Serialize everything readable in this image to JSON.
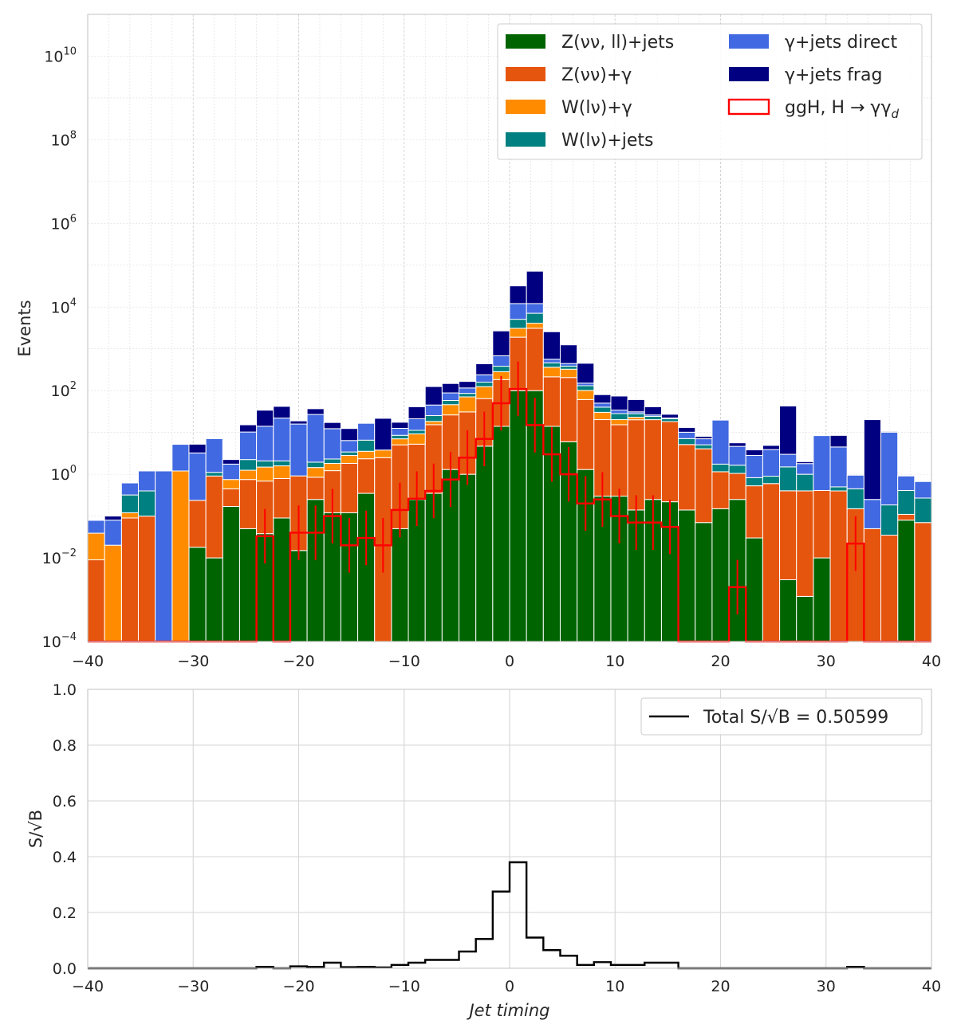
{
  "chart_data": [
    {
      "type": "bar",
      "stacked": true,
      "yscale": "log",
      "ylabel": "Events",
      "xlim": [
        -40,
        40
      ],
      "ylim": [
        0.0001,
        100000000000
      ],
      "bin_edges": [
        -40,
        -38.4,
        -36.8,
        -35.2,
        -33.6,
        -32,
        -30.4,
        -28.8,
        -27.2,
        -25.6,
        -24,
        -22.4,
        -20.8,
        -19.2,
        -17.6,
        -16,
        -14.4,
        -12.8,
        -11.2,
        -9.6,
        -8,
        -6.4,
        -4.8,
        -3.2,
        -1.6,
        0,
        1.6,
        3.2,
        4.8,
        6.4,
        8,
        9.6,
        11.2,
        12.8,
        14.4,
        16,
        17.6,
        19.2,
        20.8,
        22.4,
        24,
        25.6,
        27.2,
        28.8,
        30.4,
        32,
        33.6,
        35.2,
        36.8,
        38.4,
        40
      ],
      "x_ticks": [
        "−40",
        "−30",
        "−20",
        "−10",
        "0",
        "10",
        "20",
        "30",
        "40"
      ],
      "x_tick_values": [
        -40,
        -30,
        -20,
        -10,
        0,
        10,
        20,
        30,
        40
      ],
      "y_ticks": [
        {
          "base": "10",
          "exp": "−4",
          "value": 0.0001
        },
        {
          "base": "10",
          "exp": "−2",
          "value": 0.01
        },
        {
          "base": "10",
          "exp": "0",
          "value": 1
        },
        {
          "base": "10",
          "exp": "2",
          "value": 100
        },
        {
          "base": "10",
          "exp": "4",
          "value": 10000
        },
        {
          "base": "10",
          "exp": "6",
          "value": 1000000
        },
        {
          "base": "10",
          "exp": "8",
          "value": 100000000
        },
        {
          "base": "10",
          "exp": "10",
          "value": 10000000000
        }
      ],
      "grid": true,
      "legend_position": "top-right",
      "series": [
        {
          "name": "Z(νν, ll)+jets",
          "color": "#006400",
          "values": [
            0,
            0,
            0,
            0,
            0,
            0,
            0.018,
            0.01,
            0.17,
            0.05,
            0.038,
            0.09,
            0.015,
            0.25,
            0.12,
            0.12,
            0.35,
            0.0001,
            0.05,
            0.25,
            0.35,
            1.3,
            1.0,
            4.7,
            14,
            100,
            100,
            14,
            6,
            1.3,
            0.3,
            0.3,
            0.14,
            0.25,
            0.22,
            0.14,
            0.07,
            0.15,
            0.25,
            0.03,
            0.0001,
            0.003,
            0.0012,
            0.01,
            0,
            0,
            0,
            0,
            0.08,
            0,
            0
          ]
        },
        {
          "name": "Z(νν)+γ",
          "color": "#e6550d",
          "values": [
            0.009,
            0.0001,
            0.09,
            0.1,
            0,
            0,
            0.22,
            0.9,
            0.28,
            0.7,
            0.65,
            0.7,
            0.9,
            0.6,
            1.1,
            1.7,
            2.0,
            2.5,
            5,
            5,
            15,
            25,
            30,
            60,
            170,
            1800,
            3000,
            200,
            200,
            60,
            20,
            15,
            20,
            20,
            18,
            5,
            4,
            1.0,
            0.8,
            0.5,
            0.6,
            0.4,
            0.4,
            0.4,
            0.4,
            0.15,
            0.05,
            0.035,
            0.03,
            0.07,
            0.08
          ]
        },
        {
          "name": "W(lν)+γ",
          "color": "#ff8c00",
          "values": [
            0.03,
            0.02,
            0.03,
            0,
            0,
            1.2,
            0.0001,
            0,
            0.3,
            0.5,
            0.8,
            0.8,
            0.0001,
            0.6,
            0.6,
            1.0,
            1.2,
            1.3,
            2,
            4,
            3,
            20,
            40,
            60,
            100,
            1200,
            1000,
            150,
            120,
            40,
            10,
            5,
            3,
            0,
            0,
            0,
            0,
            0,
            0,
            0,
            0,
            0,
            0,
            0,
            0,
            0,
            0,
            0,
            0,
            0,
            0
          ]
        },
        {
          "name": "W(lν)+jets",
          "color": "#008080",
          "values": [
            0,
            0,
            0.2,
            0.3,
            0,
            0,
            0,
            0.2,
            0,
            1.0,
            0.6,
            0.5,
            0,
            0.5,
            0.5,
            0.6,
            3,
            0,
            1.5,
            2,
            7,
            12,
            15,
            35,
            100,
            2000,
            3000,
            100,
            60,
            30,
            10,
            8,
            5,
            4,
            3,
            2,
            1,
            0.6,
            0.6,
            0.3,
            0.3,
            1.1,
            0.6,
            0,
            0.1,
            0.3,
            0,
            0.15,
            0.3,
            0.2,
            0.15
          ]
        },
        {
          "name": "γ+jets direct",
          "color": "#4169e1",
          "values": [
            0.04,
            0.06,
            0.3,
            0.8,
            1.2,
            4.0,
            3.0,
            6.0,
            1.0,
            8.0,
            12,
            20,
            15,
            25,
            10,
            3,
            10,
            0,
            4,
            10,
            20,
            30,
            30,
            80,
            300,
            7000,
            5000,
            100,
            60,
            20,
            10,
            6,
            3,
            2,
            1,
            3,
            2,
            18,
            3,
            2,
            3,
            1.5,
            0.8,
            8,
            4,
            0.5,
            0.2,
            10,
            0.5,
            0.4,
            0.6
          ]
        },
        {
          "name": "γ+jets frag",
          "color": "#000080",
          "values": [
            0,
            0.02,
            0,
            0,
            0,
            0,
            2.0,
            0,
            0.5,
            5.0,
            20,
            20,
            3.0,
            10,
            5,
            6,
            0,
            18,
            5,
            20,
            80,
            60,
            50,
            200,
            2000,
            20000,
            60000,
            2000,
            800,
            300,
            30,
            40,
            30,
            15,
            5,
            3,
            1,
            0,
            1.0,
            1.0,
            1.0,
            40,
            0.2,
            0,
            4,
            0,
            20,
            0.5,
            0,
            0,
            0
          ]
        }
      ],
      "signal": {
        "name": "ggH, H → γγ",
        "name_subscript": "d",
        "color": "#ff0000",
        "values": [
          0,
          0,
          0,
          0,
          0,
          0,
          0,
          0,
          0,
          0,
          0.033,
          0.0001,
          0.04,
          0.04,
          0.1,
          0.02,
          0.03,
          0.02,
          0.14,
          0.26,
          0.4,
          0.75,
          2.5,
          7,
          50,
          110,
          15,
          3,
          1.0,
          0.2,
          0.25,
          0.1,
          0.07,
          0.07,
          0.055,
          0,
          0,
          0,
          0.002,
          0,
          0,
          0,
          0,
          0,
          0,
          0.022,
          0,
          0,
          0,
          0,
          0
        ],
        "error_bars": true
      }
    },
    {
      "type": "line",
      "drawstyle": "steps",
      "ylabel": "S/√B",
      "xlabel": "Jet timing",
      "xlim": [
        -40,
        40
      ],
      "ylim": [
        0.0,
        1.0
      ],
      "x_ticks": [
        "−40",
        "−30",
        "−20",
        "−10",
        "0",
        "10",
        "20",
        "30",
        "40"
      ],
      "x_tick_values": [
        -40,
        -30,
        -20,
        -10,
        0,
        10,
        20,
        30,
        40
      ],
      "y_ticks": [
        "0.0",
        "0.2",
        "0.4",
        "0.6",
        "0.8",
        "1.0"
      ],
      "y_tick_values": [
        0.0,
        0.2,
        0.4,
        0.6,
        0.8,
        1.0
      ],
      "grid": true,
      "legend_position": "top-right",
      "series": [
        {
          "name": "Total S/√B = 0.50599",
          "color": "#000000",
          "label_color": "#800080",
          "values": [
            0,
            0,
            0,
            0,
            0,
            0,
            0,
            0,
            0,
            0,
            0.005,
            0,
            0.007,
            0.005,
            0.02,
            0.004,
            0.005,
            0.003,
            0.012,
            0.02,
            0.03,
            0.03,
            0.06,
            0.105,
            0.275,
            0.38,
            0.11,
            0.065,
            0.045,
            0.012,
            0.022,
            0.012,
            0.012,
            0.02,
            0.02,
            0,
            0,
            0,
            0,
            0,
            0,
            0,
            0,
            0,
            0,
            0.005,
            0,
            0,
            0,
            0,
            0
          ]
        }
      ]
    }
  ]
}
